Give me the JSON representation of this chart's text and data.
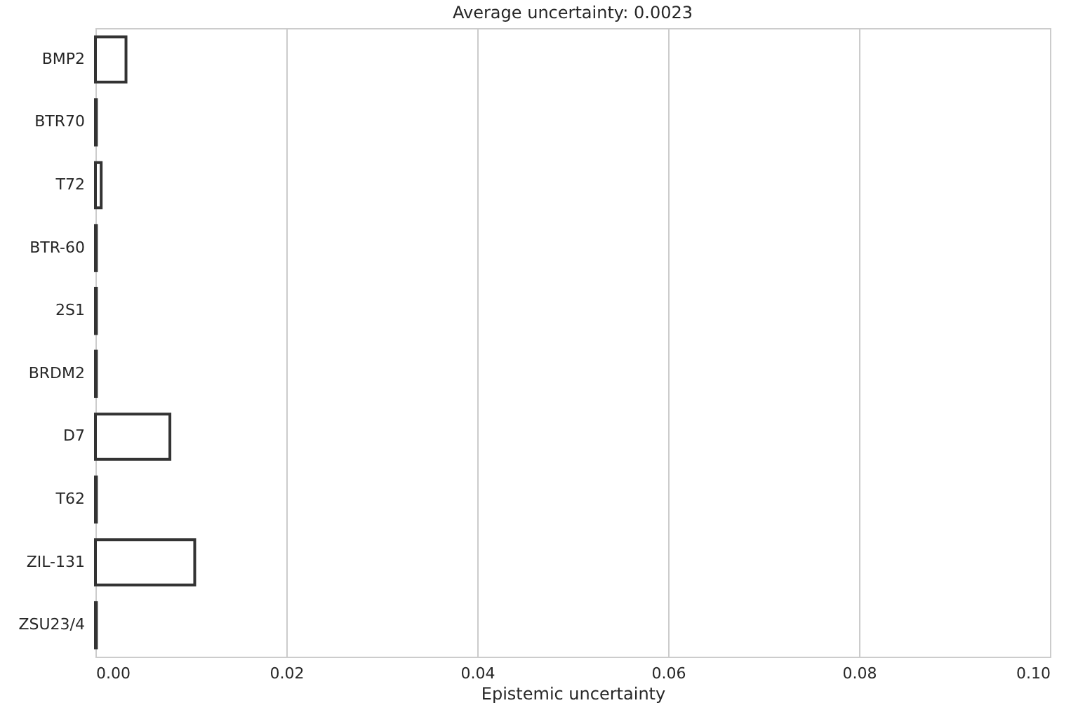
{
  "chart_data": {
    "type": "bar",
    "orientation": "horizontal",
    "title": "Average uncertainty: 0.0023",
    "xlabel": "Epistemic uncertainty",
    "categories": [
      "BMP2",
      "BTR70",
      "T72",
      "BTR-60",
      "2S1",
      "BRDM2",
      "D7",
      "T62",
      "ZIL-131",
      "ZSU23/4"
    ],
    "values": [
      0.0032,
      0.0001,
      0.0006,
      0.0001,
      0.0001,
      0.0001,
      0.0078,
      0.0001,
      0.0104,
      0.0001
    ],
    "color": "#ffffff",
    "xlim": [
      0,
      0.1
    ],
    "xticks": [
      {
        "value": 0,
        "label": "0.00"
      },
      {
        "value": 0.02,
        "label": "0.02"
      },
      {
        "value": 0.04,
        "label": "0.04"
      },
      {
        "value": 0.06,
        "label": "0.06"
      },
      {
        "value": 0.08,
        "label": "0.08"
      },
      {
        "value": 0.1,
        "label": "0.10"
      }
    ],
    "grid": "x"
  }
}
